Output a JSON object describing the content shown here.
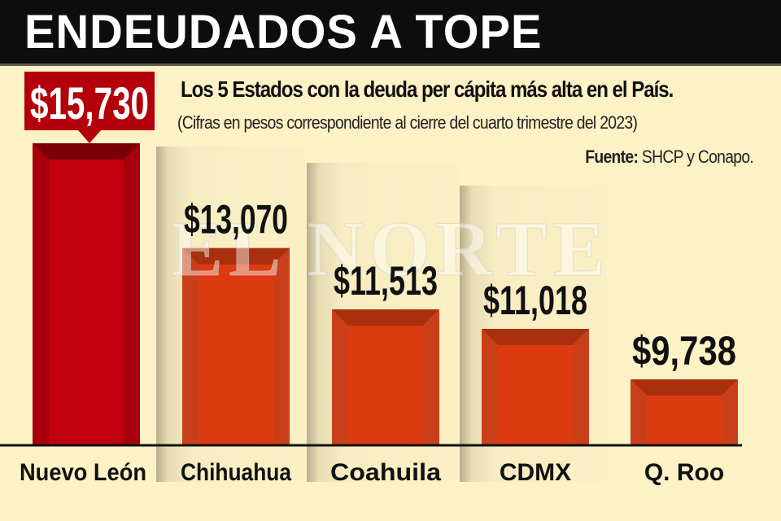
{
  "header": {
    "title": "ENDEUDADOS A TOPE"
  },
  "subtitle": "Los 5 Estados con la deuda per cápita más alta en el País.",
  "note": "(Cifras en pesos correspondiente al cierre del cuarto trimestre del 2023)",
  "source": {
    "label": "Fuente:",
    "text": "SHCP y Conapo."
  },
  "watermark": "EL NORTE",
  "colors": {
    "highlight": "#c0000c",
    "bars": "#de3a12",
    "background": "#fdf1c6",
    "title_bar": "#0d0d0d"
  },
  "chart_data": {
    "type": "bar",
    "title": "Los 5 Estados con la deuda per cápita más alta en el País.",
    "categories": [
      "Nuevo León",
      "Chihuahua",
      "Coahuila",
      "CDMX",
      "Q. Roo"
    ],
    "values": [
      15730,
      13070,
      11513,
      11018,
      9738
    ],
    "value_labels": [
      "$15,730",
      "$13,070",
      "$11,513",
      "$11,018",
      "$9,738"
    ],
    "highlighted": "Nuevo León",
    "unit": "pesos",
    "grid": false,
    "legend": "none"
  }
}
